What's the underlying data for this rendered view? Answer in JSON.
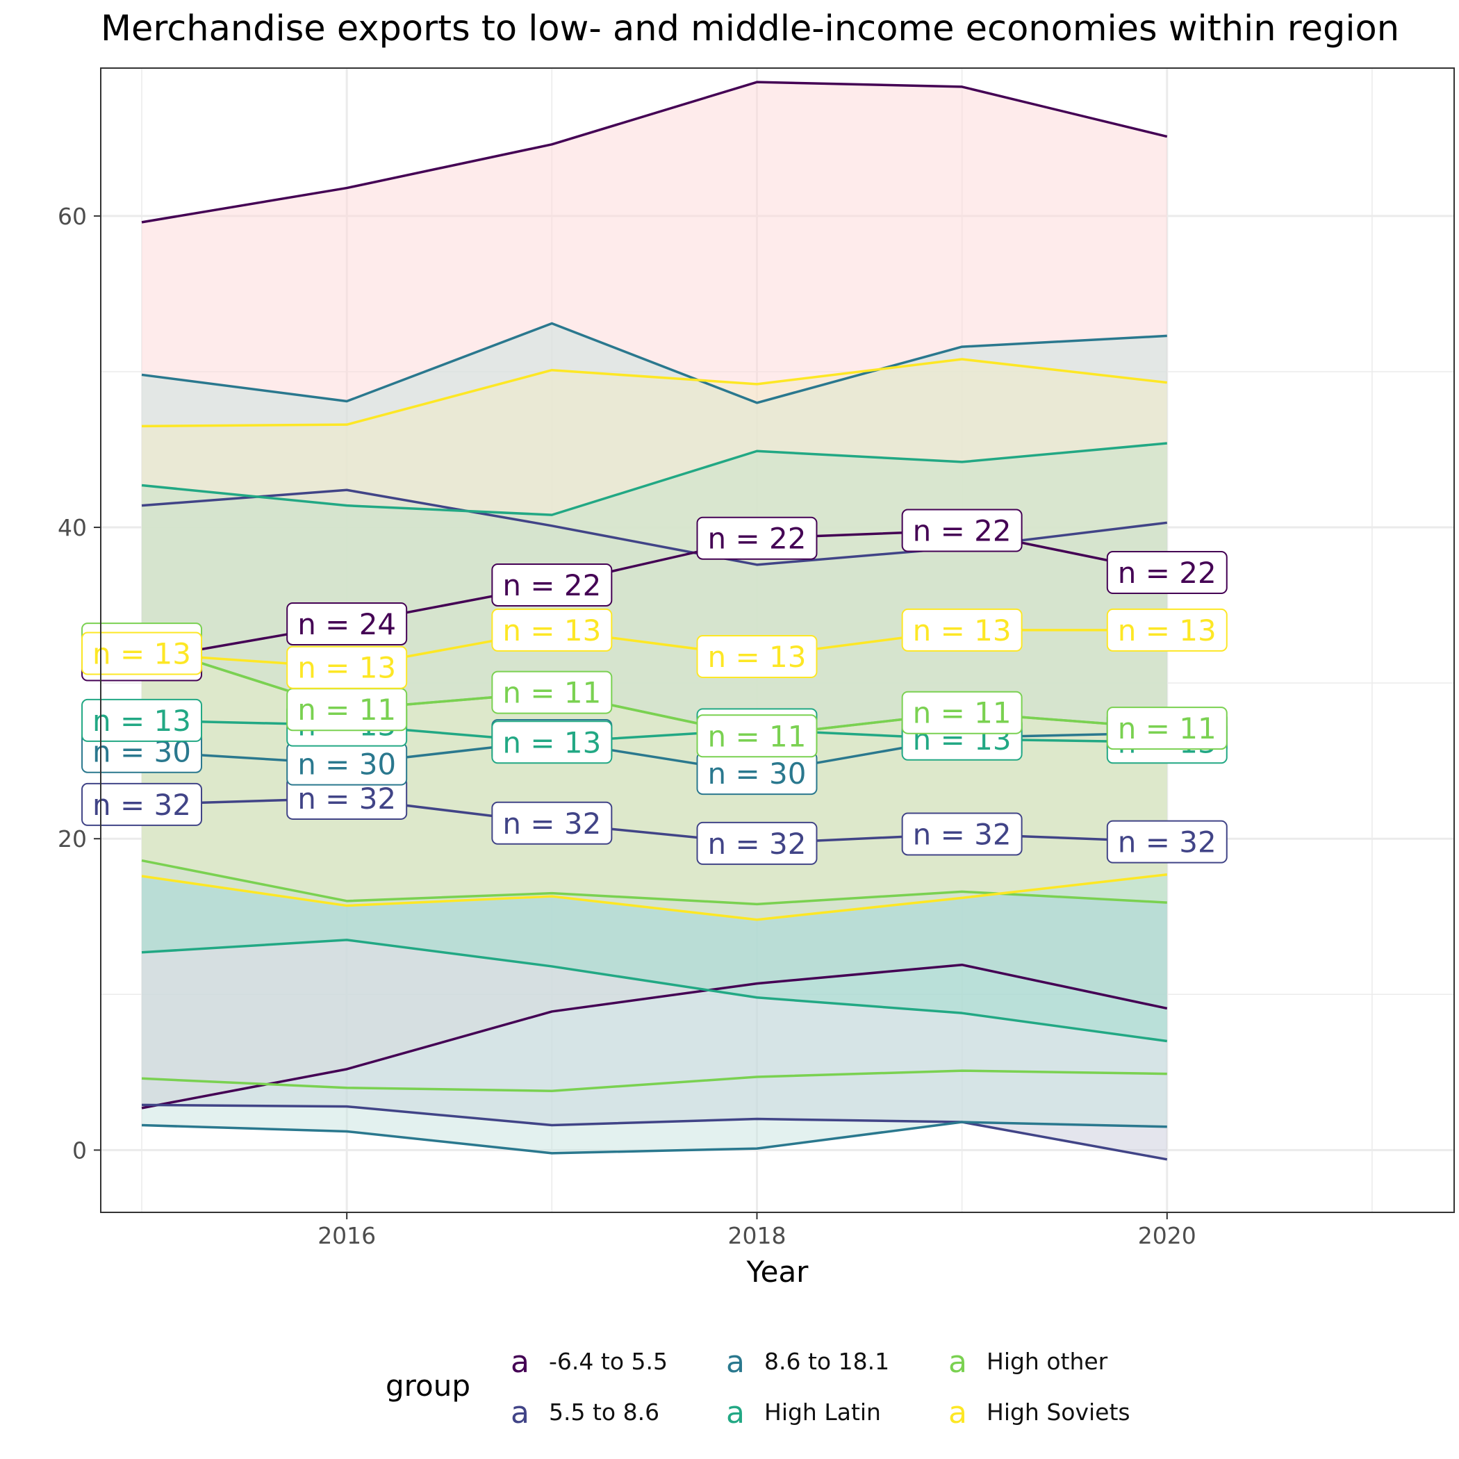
{
  "chart_data": {
    "type": "line",
    "title": "Merchandise exports to low- and middle-income economies within region",
    "xlabel": "Year",
    "ylabel": "",
    "xlim": [
      2014.8,
      2021.4
    ],
    "ylim": [
      -4,
      69.5
    ],
    "x_ticks": [
      2016,
      2018,
      2020
    ],
    "y_ticks": [
      0,
      20,
      40,
      60
    ],
    "grid": true,
    "legend_position": "bottom",
    "legend_title": "group",
    "legend_key_glyph": "a",
    "x": [
      2015,
      2016,
      2017,
      2018,
      2019,
      2020
    ],
    "series": [
      {
        "name": "-6.4 to 5.5",
        "color": "#440154",
        "values": [
          31.5,
          33.8,
          36.3,
          39.3,
          39.8,
          37.1
        ],
        "upper": [
          59.6,
          61.8,
          64.6,
          68.6,
          68.3,
          65.1
        ],
        "lower": [
          2.7,
          5.2,
          8.9,
          10.7,
          11.9,
          9.1
        ],
        "fill": "#fdd8d8",
        "labels": [
          "n = 24",
          "n = 24",
          "n = 22",
          "n = 22",
          "n = 22",
          "n = 22"
        ]
      },
      {
        "name": "5.5 to 8.6",
        "color": "#414487",
        "values": [
          22.2,
          22.6,
          21.0,
          19.7,
          20.3,
          19.8
        ],
        "upper": [
          41.4,
          42.4,
          40.1,
          37.6,
          38.7,
          40.3
        ],
        "lower": [
          2.9,
          2.8,
          1.6,
          2.0,
          1.8,
          -0.6
        ],
        "fill": "#c9ccdc",
        "labels": [
          "n = 32",
          "n = 32",
          "n = 32",
          "n = 32",
          "n = 32",
          "n = 32"
        ]
      },
      {
        "name": "8.6 to 18.1",
        "color": "#2a788e",
        "values": [
          25.6,
          24.8,
          26.3,
          24.2,
          26.5,
          26.8
        ],
        "upper": [
          49.8,
          48.1,
          53.1,
          48.0,
          51.6,
          52.3
        ],
        "lower": [
          1.6,
          1.2,
          -0.2,
          0.1,
          1.8,
          1.5
        ],
        "fill": "#c8e4df",
        "labels": [
          "n = 30",
          "n = 30",
          "n = 30",
          "n = 30",
          "n = 30",
          "n = 30"
        ]
      },
      {
        "name": "High Latin",
        "color": "#22a884",
        "values": [
          27.6,
          27.3,
          26.2,
          27.0,
          26.4,
          26.2
        ],
        "upper": [
          42.7,
          41.4,
          40.8,
          44.9,
          44.2,
          45.4
        ],
        "lower": [
          12.7,
          13.5,
          11.8,
          9.8,
          8.8,
          7.0
        ],
        "fill": "#9edccb",
        "labels": [
          "n = 13",
          "n = 13",
          "n = 13",
          "n = 13",
          "n = 13",
          "n = 13"
        ]
      },
      {
        "name": "High other",
        "color": "#7ad151",
        "values": [
          32.5,
          28.3,
          29.4,
          26.6,
          28.1,
          27.1
        ],
        "upper": [
          32.5,
          28.3,
          29.4,
          26.6,
          28.1,
          27.1
        ],
        "lower": [
          18.6,
          16.0,
          16.5,
          15.8,
          16.6,
          15.9
        ],
        "fill": "#d8eecb",
        "labels": [
          "n = 11",
          "n = 11",
          "n = 11",
          "n = 11",
          "n = 11",
          "n = 11"
        ]
      },
      {
        "name": "High Soviets",
        "color": "#fde725",
        "values": [
          31.9,
          31.0,
          33.4,
          31.7,
          33.4,
          33.4
        ],
        "upper": [
          46.5,
          46.6,
          50.1,
          49.2,
          50.8,
          49.3
        ],
        "lower": [
          17.6,
          15.7,
          16.3,
          14.8,
          16.2,
          17.7
        ],
        "fill": "#f1ecc6",
        "labels": [
          "n = 13",
          "n = 13",
          "n = 13",
          "n = 13",
          "n = 13",
          "n = 13"
        ]
      }
    ],
    "extra_lines": [
      {
        "color": "#7ad151",
        "values": [
          4.6,
          4.0,
          3.8,
          4.7,
          5.1,
          4.9
        ]
      }
    ]
  }
}
